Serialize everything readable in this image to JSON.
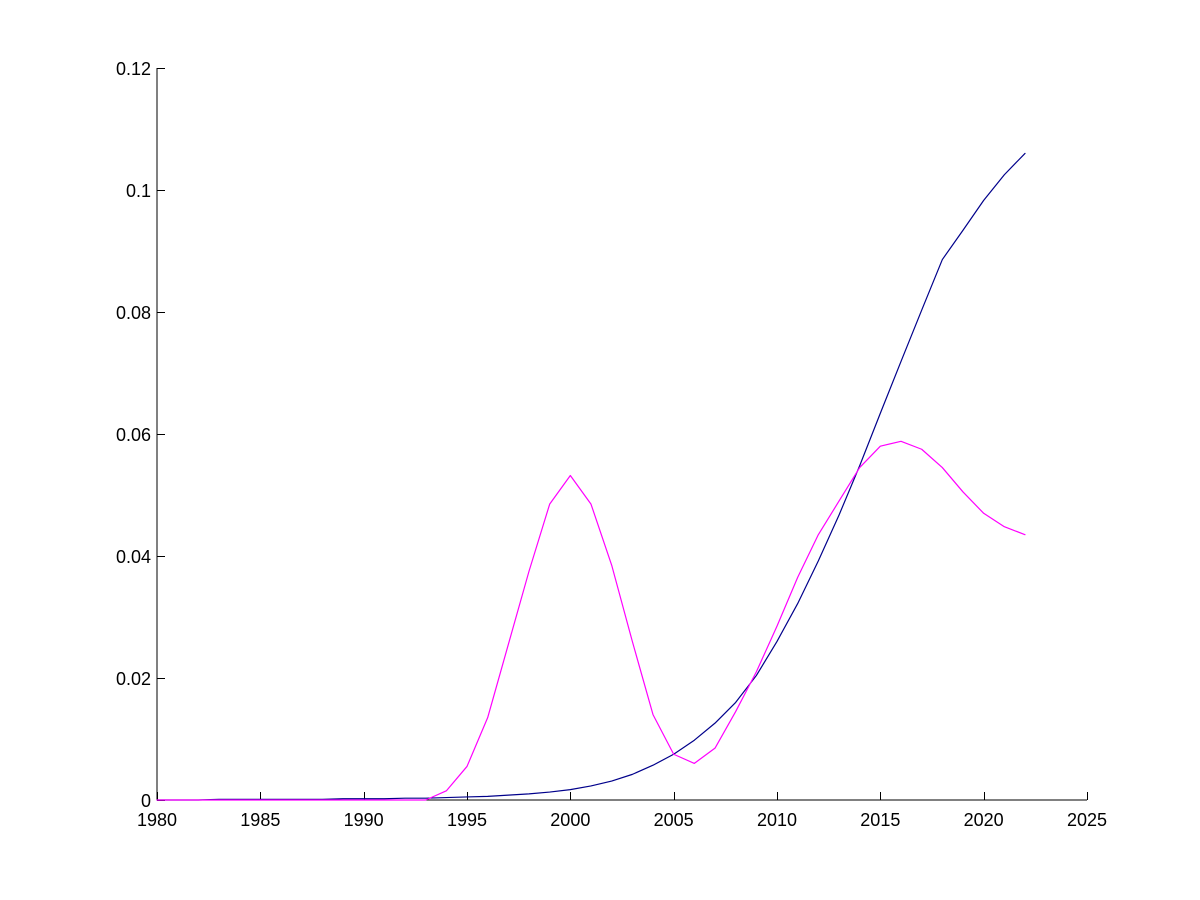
{
  "chart_data": {
    "type": "line",
    "title": "",
    "xlabel": "",
    "ylabel": "",
    "xlim": [
      1980,
      2025
    ],
    "ylim": [
      0,
      0.12
    ],
    "x_ticks": [
      1980,
      1985,
      1990,
      1995,
      2000,
      2005,
      2010,
      2015,
      2020,
      2025
    ],
    "x_tick_labels": [
      "1980",
      "1985",
      "1990",
      "1995",
      "2000",
      "2005",
      "2010",
      "2015",
      "2020",
      "2025"
    ],
    "y_ticks": [
      0,
      0.02,
      0.04,
      0.06,
      0.08,
      0.1,
      0.12
    ],
    "y_tick_labels": [
      "0",
      "0.02",
      "0.04",
      "0.06",
      "0.08",
      "0.1",
      "0.12"
    ],
    "grid": false,
    "legend": "none",
    "x": [
      1980,
      1981,
      1982,
      1983,
      1984,
      1985,
      1986,
      1987,
      1988,
      1989,
      1990,
      1991,
      1992,
      1993,
      1994,
      1995,
      1996,
      1997,
      1998,
      1999,
      2000,
      2001,
      2002,
      2003,
      2004,
      2005,
      2006,
      2007,
      2008,
      2009,
      2010,
      2011,
      2012,
      2013,
      2014,
      2015,
      2016,
      2017,
      2018,
      2019,
      2020,
      2021,
      2022
    ],
    "series": [
      {
        "color": "#00008b",
        "values": [
          0,
          0,
          0,
          0.0001,
          0.0001,
          0.0001,
          0.0001,
          0.0001,
          0.0001,
          0.0002,
          0.0002,
          0.0002,
          0.0003,
          0.0003,
          0.0004,
          0.0005,
          0.0006,
          0.0008,
          0.001,
          0.0013,
          0.0017,
          0.0023,
          0.0031,
          0.0042,
          0.0057,
          0.0075,
          0.0098,
          0.0126,
          0.016,
          0.0204,
          0.026,
          0.0322,
          0.0392,
          0.0467,
          0.0548,
          0.0634,
          0.0719,
          0.0803,
          0.0886,
          0.0934,
          0.0983,
          0.1025,
          0.106
        ]
      },
      {
        "color": "#ff00ff",
        "values": [
          0,
          0,
          0,
          0,
          0,
          0,
          0,
          0,
          0,
          0,
          0,
          0,
          0,
          0,
          0.0015,
          0.0055,
          0.0135,
          0.0255,
          0.0375,
          0.0485,
          0.0532,
          0.0485,
          0.0385,
          0.026,
          0.014,
          0.0075,
          0.006,
          0.0085,
          0.0145,
          0.021,
          0.0285,
          0.0365,
          0.0435,
          0.049,
          0.0545,
          0.058,
          0.0588,
          0.0575,
          0.0545,
          0.0505,
          0.047,
          0.0448,
          0.0435
        ]
      }
    ]
  }
}
